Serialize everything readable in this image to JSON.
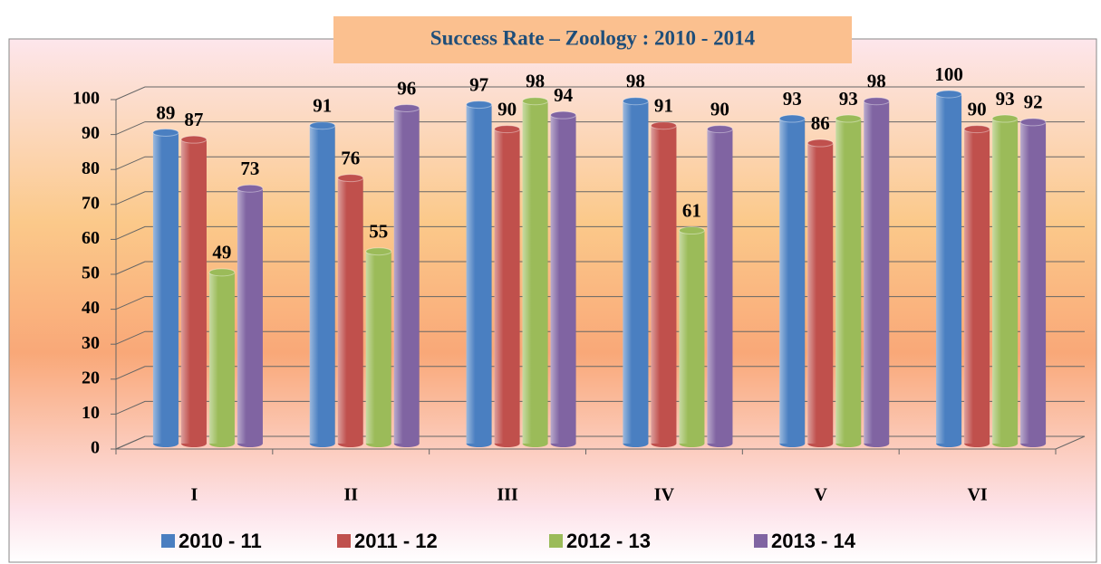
{
  "chart_data": {
    "type": "bar",
    "title": "Success Rate – Zoology  :  2010 - 2014",
    "categories": [
      "I",
      "II",
      "III",
      "IV",
      "V",
      "VI"
    ],
    "series": [
      {
        "name": "2010 - 11",
        "color": "#4a7fc1",
        "values": [
          89,
          91,
          97,
          98,
          93,
          100
        ]
      },
      {
        "name": "2011 - 12",
        "color": "#c0504d",
        "values": [
          87,
          76,
          90,
          91,
          86,
          90
        ]
      },
      {
        "name": "2012 - 13",
        "color": "#9bbb59",
        "values": [
          49,
          55,
          98,
          61,
          93,
          93
        ]
      },
      {
        "name": "2013 - 14",
        "color": "#8064a2",
        "values": [
          73,
          96,
          94,
          90,
          98,
          92
        ]
      }
    ],
    "ylim": [
      0,
      100
    ],
    "yticks": [
      0,
      10,
      20,
      30,
      40,
      50,
      60,
      70,
      80,
      90,
      100
    ],
    "grid": true,
    "legend": "bottom"
  }
}
